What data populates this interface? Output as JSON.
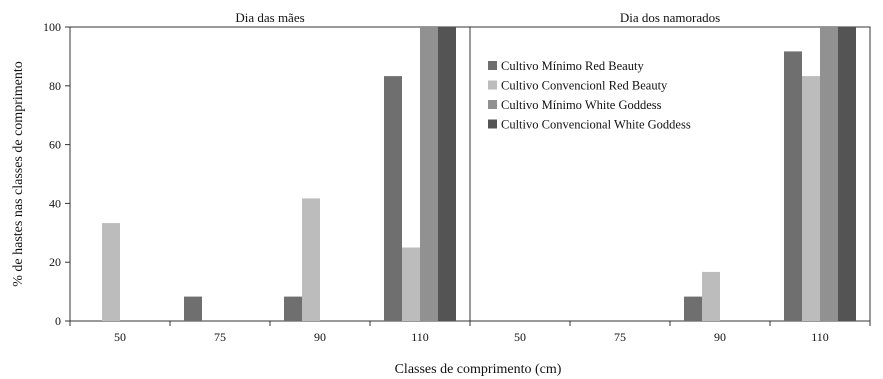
{
  "chart_data": {
    "type": "bar",
    "xlabel": "Classes de comprimento (cm)",
    "ylabel": "% de hastes nas classes de comprimento",
    "ylim": [
      0,
      100
    ],
    "yticks": [
      "0",
      "20",
      "40",
      "60",
      "80",
      "100"
    ],
    "categories": [
      "50",
      "75",
      "90",
      "110"
    ],
    "legend_position": "right panel, upper-left",
    "grid": false,
    "series_styles": [
      {
        "name": "Cultivo Mínimo Red Beauty",
        "color": "#6f6f6f"
      },
      {
        "name": "Cultivo Convencionl Red Beauty",
        "color": "#bcbcbc"
      },
      {
        "name": "Cultivo Mínimo White Goddess",
        "color": "#919191"
      },
      {
        "name": "Cultivo Convencional White Goddess",
        "color": "#545454"
      }
    ],
    "panels": [
      {
        "title": "Dia das mães",
        "series": [
          {
            "name": "Cultivo Mínimo Red Beauty",
            "values": [
              0,
              8.3,
              8.3,
              83.3
            ]
          },
          {
            "name": "Cultivo Convencionl Red Beauty",
            "values": [
              33.3,
              0,
              41.7,
              25
            ]
          },
          {
            "name": "Cultivo Mínimo White Goddess",
            "values": [
              0,
              0,
              0,
              100
            ]
          },
          {
            "name": "Cultivo Convencional White Goddess",
            "values": [
              0,
              0,
              0,
              100
            ]
          }
        ]
      },
      {
        "title": "Dia dos namorados",
        "series": [
          {
            "name": "Cultivo Mínimo Red Beauty",
            "values": [
              0,
              0,
              8.3,
              91.7
            ]
          },
          {
            "name": "Cultivo Convencionl Red Beauty",
            "values": [
              0,
              0,
              16.7,
              83.3
            ]
          },
          {
            "name": "Cultivo Mínimo White Goddess",
            "values": [
              0,
              0,
              0,
              100
            ]
          },
          {
            "name": "Cultivo Convencional White Goddess",
            "values": [
              0,
              0,
              0,
              100
            ]
          }
        ]
      }
    ]
  }
}
